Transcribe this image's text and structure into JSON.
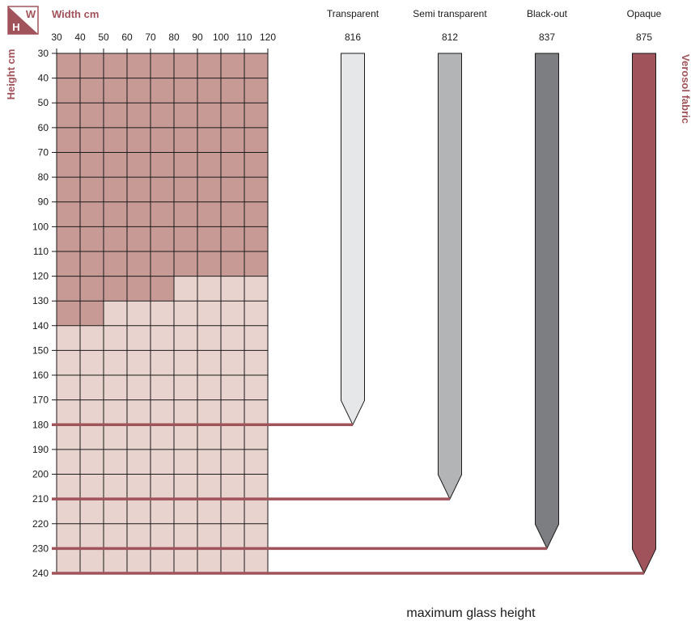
{
  "corner_badge": {
    "w": "W",
    "h": "H"
  },
  "width_title": "Width cm",
  "height_title": "Height cm",
  "side_label": "Verosol fabric",
  "footer_label": "maximum glass height",
  "colors": {
    "brand": "#a0535a",
    "dark_cell": "#c79a96",
    "light_cell": "#e8d3cf",
    "grid_line": "#1a1a1a"
  },
  "chart_data": {
    "type": "heatmap",
    "x_axis": {
      "label": "Width cm",
      "values": [
        30,
        40,
        50,
        60,
        70,
        80,
        90,
        100,
        110,
        120
      ]
    },
    "y_axis": {
      "label": "Height cm",
      "values": [
        30,
        40,
        50,
        60,
        70,
        80,
        90,
        100,
        110,
        120,
        130,
        140,
        150,
        160,
        170,
        180,
        190,
        200,
        210,
        220,
        230,
        240
      ]
    },
    "dark_region_upper_height_by_column": [
      {
        "from_width": 30,
        "to_width": 40,
        "up_to_height": 140
      },
      {
        "from_width": 40,
        "to_width": 50,
        "up_to_height": 140
      },
      {
        "from_width": 50,
        "to_width": 60,
        "up_to_height": 130
      },
      {
        "from_width": 60,
        "to_width": 70,
        "up_to_height": 130
      },
      {
        "from_width": 70,
        "to_width": 80,
        "up_to_height": 130
      },
      {
        "from_width": 80,
        "to_width": 90,
        "up_to_height": 120
      },
      {
        "from_width": 90,
        "to_width": 100,
        "up_to_height": 120
      },
      {
        "from_width": 100,
        "to_width": 110,
        "up_to_height": 120
      },
      {
        "from_width": 110,
        "to_width": 120,
        "up_to_height": 120
      }
    ],
    "fabrics": [
      {
        "name": "Transparent",
        "code": "816",
        "max_glass_height": 180,
        "color": "#e6e7e9"
      },
      {
        "name": "Semi transparent",
        "code": "812",
        "max_glass_height": 210,
        "color": "#b3b4b6"
      },
      {
        "name": "Black-out",
        "code": "837",
        "max_glass_height": 230,
        "color": "#7d7e82"
      },
      {
        "name": "Opaque",
        "code": "875",
        "max_glass_height": 240,
        "color": "#a0535a"
      }
    ]
  }
}
